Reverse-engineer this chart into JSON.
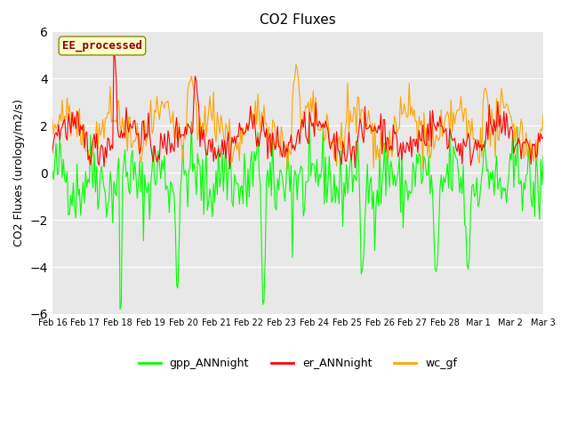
{
  "title": "CO2 Fluxes",
  "ylabel": "CO2 Fluxes (urology/m2/s)",
  "ylim": [
    -6,
    6
  ],
  "yticks": [
    -6,
    -4,
    -2,
    0,
    2,
    4,
    6
  ],
  "annotation_text": "EE_processed",
  "annotation_color": "#8B0000",
  "annotation_bg": "#FFFFCC",
  "annotation_border": "#8B8B00",
  "line_colors": {
    "gpp_ANNnight": "#00FF00",
    "er_ANNnight": "#FF0000",
    "wc_gf": "#FFA500"
  },
  "legend_labels": [
    "gpp_ANNnight",
    "er_ANNnight",
    "wc_gf"
  ],
  "bg_color": "#E8E8E8",
  "fig_bg": "#FFFFFF",
  "grid_color": "#FFFFFF",
  "n_points": 400,
  "xtick_positions": [
    0,
    1,
    2,
    3,
    4,
    5,
    6,
    7,
    8,
    9,
    10,
    11,
    12,
    13,
    14,
    15
  ],
  "xtick_labels": [
    "Feb 16",
    "Feb 17",
    "Feb 18",
    "Feb 19",
    "Feb 20",
    "Feb 21",
    "Feb 22",
    "Feb 23",
    "Feb 24",
    "Feb 25",
    "Feb 26",
    "Feb 27",
    "Feb 28",
    "Mar 1",
    "Mar 2",
    "Mar 3"
  ]
}
